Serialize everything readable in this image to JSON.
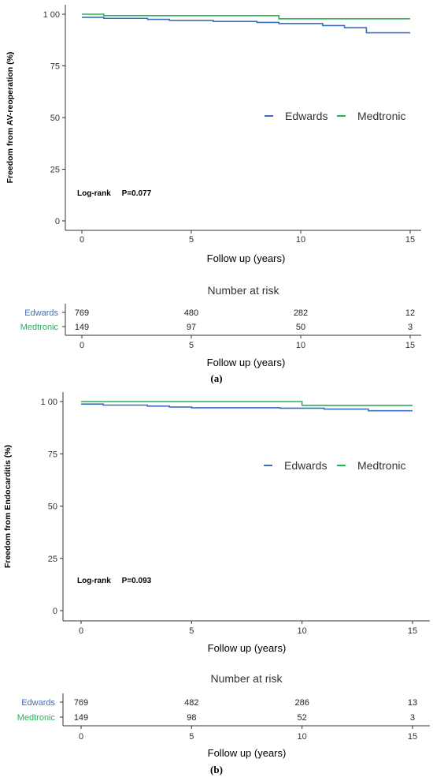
{
  "chart_data": [
    {
      "type": "line",
      "subtitle": "(a)",
      "ylabel": "Freedom from AV-reoperation (%)",
      "xlabel": "Follow up (years)",
      "ylim": [
        0,
        100
      ],
      "xlim": [
        0,
        15
      ],
      "yticks": [
        "0",
        "25",
        "50",
        "75",
        "1 00"
      ],
      "xticks": [
        "0",
        "5",
        "10",
        "15"
      ],
      "annotation": "Log-rank     P=0.077",
      "legend_position": "right",
      "series": [
        {
          "name": "Edwards",
          "color": "#3e6cc4",
          "x": [
            0,
            1,
            3,
            4,
            6,
            8,
            9,
            11,
            12,
            13,
            15
          ],
          "y": [
            98.5,
            98,
            97.5,
            97,
            96.5,
            96,
            95.5,
            94.5,
            93.5,
            91,
            91
          ]
        },
        {
          "name": "Medtronic",
          "color": "#1db954",
          "x": [
            0,
            1,
            9,
            15
          ],
          "y": [
            100,
            99.3,
            97.8,
            97.8
          ]
        }
      ],
      "risk_table": {
        "title": "Number at risk",
        "xlabel": "Follow up (years)",
        "xticks": [
          "0",
          "5",
          "10",
          "15"
        ],
        "rows": [
          {
            "group": "Edwards",
            "color": "#3e6cc4",
            "counts": [
              "769",
              "480",
              "282",
              "12"
            ]
          },
          {
            "group": "Medtronic",
            "color": "#1db954",
            "counts": [
              "149",
              "97",
              "50",
              "3"
            ]
          }
        ]
      }
    },
    {
      "type": "line",
      "subtitle": "(b)",
      "ylabel": "Freedom from Endocarditis (%)",
      "xlabel": "Follow up (years)",
      "ylim": [
        0,
        100
      ],
      "xlim": [
        0,
        15
      ],
      "yticks": [
        "0",
        "25",
        "50",
        "75",
        "1 00"
      ],
      "xticks": [
        "0",
        "5",
        "10",
        "15"
      ],
      "annotation": "Log-rank     P=0.093",
      "legend_position": "right",
      "series": [
        {
          "name": "Edwards",
          "color": "#3e6cc4",
          "x": [
            0,
            1,
            3,
            4,
            5,
            9,
            11,
            13,
            15
          ],
          "y": [
            98.8,
            98.3,
            97.8,
            97.4,
            97,
            96.8,
            96.4,
            95.6,
            95.6
          ]
        },
        {
          "name": "Medtronic",
          "color": "#1db954",
          "x": [
            0,
            10,
            15
          ],
          "y": [
            100,
            98.2,
            98.2
          ]
        }
      ],
      "risk_table": {
        "title": "Number at risk",
        "xlabel": "Follow up (years)",
        "xticks": [
          "0",
          "5",
          "10",
          "15"
        ],
        "rows": [
          {
            "group": "Edwards",
            "color": "#3e6cc4",
            "counts": [
              "769",
              "482",
              "286",
              "13"
            ]
          },
          {
            "group": "Medtronic",
            "color": "#1db954",
            "counts": [
              "149",
              "98",
              "52",
              "3"
            ]
          }
        ]
      }
    }
  ]
}
